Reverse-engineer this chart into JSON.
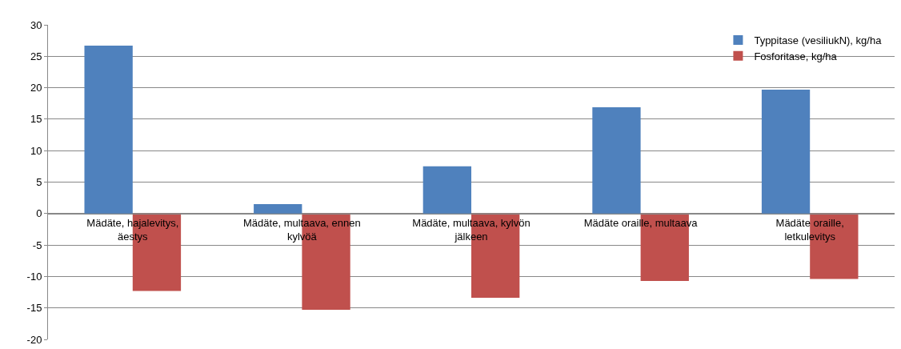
{
  "chart_data": {
    "type": "bar",
    "categories": [
      "Mädäte, hajalevitys, äestys",
      "Mädäte, multaava, ennen kylvöä",
      "Mädäte, multaava, kylvön jälkeen",
      "Mädäte oraille, multaava",
      "Mädäte oraille, letkulevitys"
    ],
    "series": [
      {
        "name": "Typpitase (vesiliukN), kg/ha",
        "color": "#4f81bd",
        "values": [
          26.7,
          1.5,
          7.5,
          16.9,
          19.7
        ]
      },
      {
        "name": "Fosforitase, kg/ha",
        "color": "#c0504d",
        "values": [
          -12.3,
          -15.3,
          -13.4,
          -10.7,
          -10.4
        ]
      }
    ],
    "ylim": [
      -20,
      30
    ],
    "yticks": [
      -20,
      -15,
      -10,
      -5,
      0,
      5,
      10,
      15,
      20,
      25,
      30
    ],
    "grid": "y",
    "legend": "top right"
  }
}
